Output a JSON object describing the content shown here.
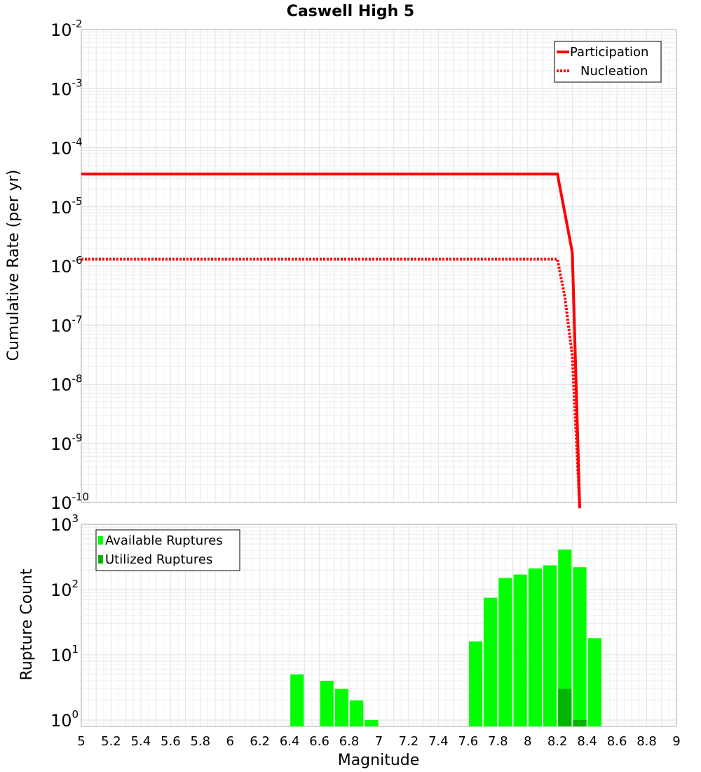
{
  "chart_data": [
    {
      "type": "line",
      "title": "Caswell High 5",
      "xlabel": "",
      "ylabel": "Cumulative Rate (per yr)",
      "xlim": [
        5,
        9
      ],
      "ylim": [
        1e-10,
        0.01
      ],
      "yscale": "log",
      "grid": true,
      "legend_position": "top-right",
      "ytick_labels": [
        {
          "base": "10",
          "exp": "-10",
          "value": 1e-10
        },
        {
          "base": "10",
          "exp": "-9",
          "value": 1e-09
        },
        {
          "base": "10",
          "exp": "-8",
          "value": 1e-08
        },
        {
          "base": "10",
          "exp": "-7",
          "value": 1e-07
        },
        {
          "base": "10",
          "exp": "-6",
          "value": 1e-06
        },
        {
          "base": "10",
          "exp": "-5",
          "value": 1e-05
        },
        {
          "base": "10",
          "exp": "-4",
          "value": 0.0001
        },
        {
          "base": "10",
          "exp": "-3",
          "value": 0.001
        },
        {
          "base": "10",
          "exp": "-2",
          "value": 0.01
        }
      ],
      "series": [
        {
          "name": "Participation",
          "style": "solid",
          "color": "#ff0000",
          "x": [
            5.0,
            8.2,
            8.3,
            8.35,
            8.35
          ],
          "y": [
            3.6e-05,
            3.6e-05,
            1.7e-06,
            8e-11,
            8e-11
          ]
        },
        {
          "name": "Nucleation",
          "style": "dotted",
          "color": "#ff0000",
          "x": [
            5.0,
            8.2,
            8.25,
            8.3,
            8.35
          ],
          "y": [
            1.3e-06,
            1.3e-06,
            3e-07,
            3e-08,
            8e-11
          ]
        }
      ]
    },
    {
      "type": "bar",
      "title": "",
      "xlabel": "Magnitude",
      "ylabel": "Rupture Count",
      "xlim": [
        5,
        9
      ],
      "ylim": [
        0.8,
        1000
      ],
      "yscale": "log",
      "grid": true,
      "legend_position": "top-left",
      "bin_width": 0.1,
      "xtick_labels": [
        "5",
        "5.2",
        "5.4",
        "5.6",
        "5.8",
        "6",
        "6.2",
        "6.4",
        "6.6",
        "6.8",
        "7",
        "7.2",
        "7.4",
        "7.6",
        "7.8",
        "8",
        "8.2",
        "8.4",
        "8.6",
        "8.8",
        "9"
      ],
      "ytick_labels": [
        {
          "base": "10",
          "exp": "0",
          "value": 1
        },
        {
          "base": "10",
          "exp": "1",
          "value": 10
        },
        {
          "base": "10",
          "exp": "2",
          "value": 100
        },
        {
          "base": "10",
          "exp": "3",
          "value": 1000
        }
      ],
      "series": [
        {
          "name": "Available Ruptures",
          "color": "#00ff00",
          "x": [
            6.45,
            6.65,
            6.75,
            6.85,
            6.95,
            7.65,
            7.75,
            7.85,
            7.95,
            8.05,
            8.15,
            8.25,
            8.35,
            8.45
          ],
          "values": [
            5,
            4,
            3,
            2,
            1,
            16,
            75,
            150,
            170,
            210,
            235,
            410,
            220,
            18
          ]
        },
        {
          "name": "Utilized Ruptures",
          "color": "#00b400",
          "x": [
            8.25,
            8.35
          ],
          "values": [
            3,
            1
          ]
        }
      ]
    }
  ]
}
